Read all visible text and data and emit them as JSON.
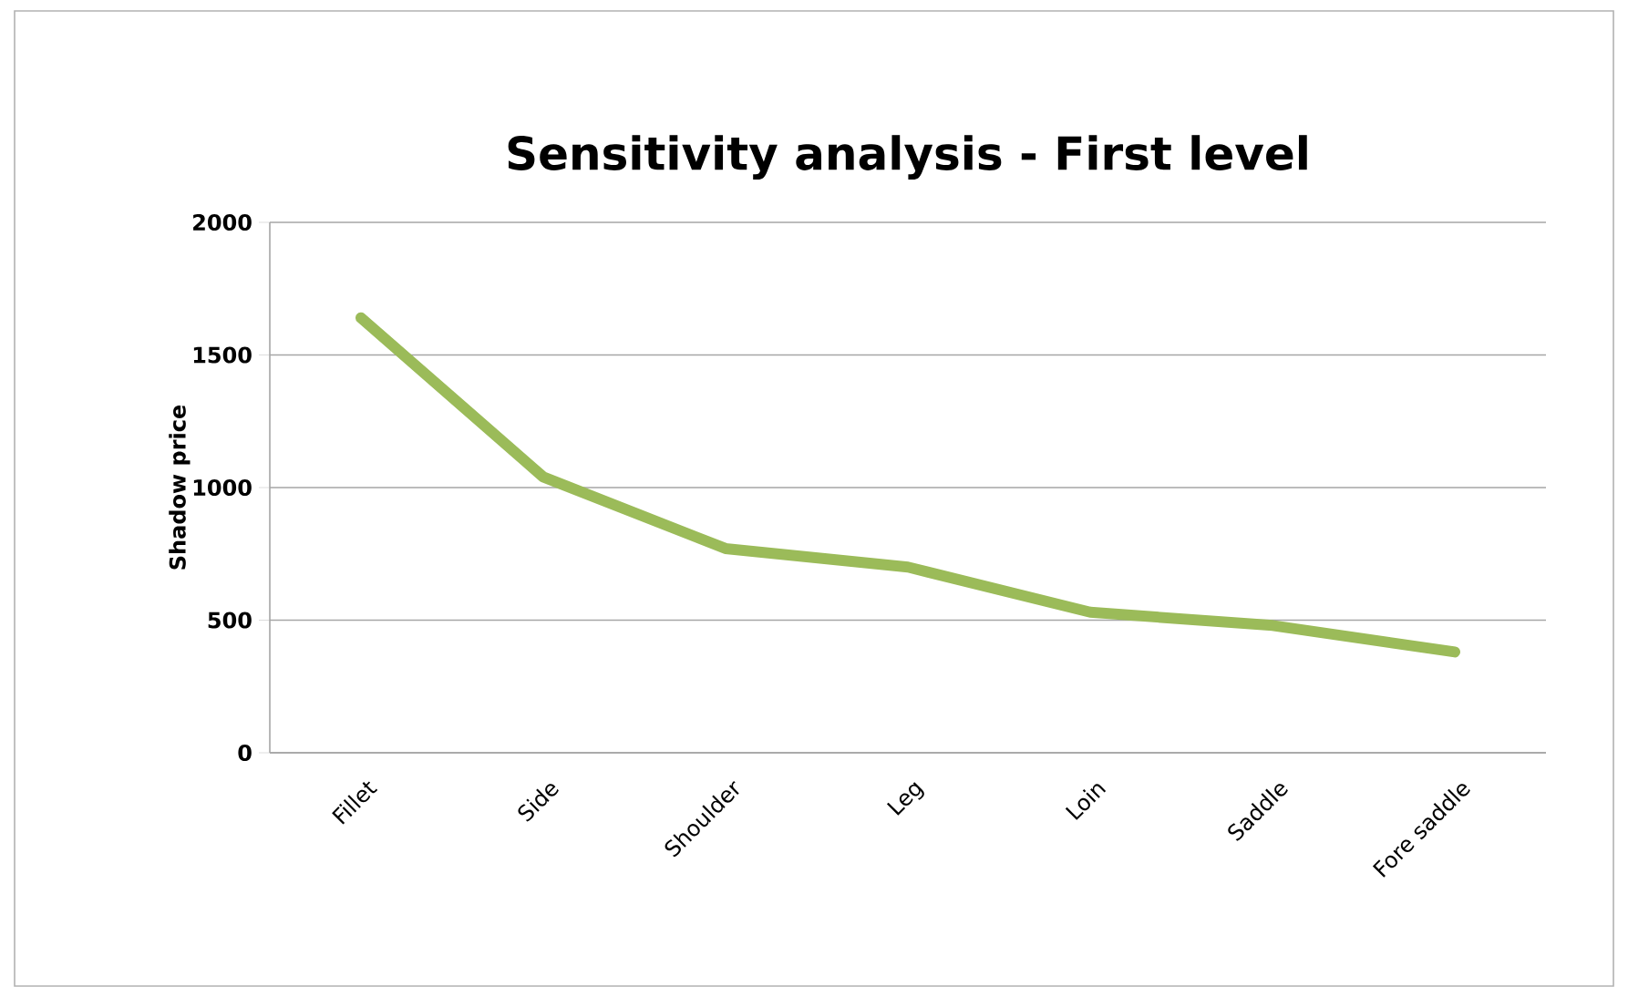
{
  "chart_data": {
    "type": "line",
    "title": "Sensitivity analysis - First level",
    "ylabel": "Shadow price",
    "categories": [
      "Fillet",
      "Side",
      "Shoulder",
      "Leg",
      "Loin",
      "Saddle",
      "Fore saddle"
    ],
    "series": [
      {
        "color": "#9bbb59",
        "values": [
          1640,
          1040,
          770,
          700,
          530,
          480,
          380
        ]
      }
    ],
    "ylim": [
      0,
      2000
    ],
    "yticks": [
      0,
      500,
      1000,
      1500,
      2000
    ],
    "grid": "y",
    "marker": "none",
    "line_style": "solid"
  }
}
